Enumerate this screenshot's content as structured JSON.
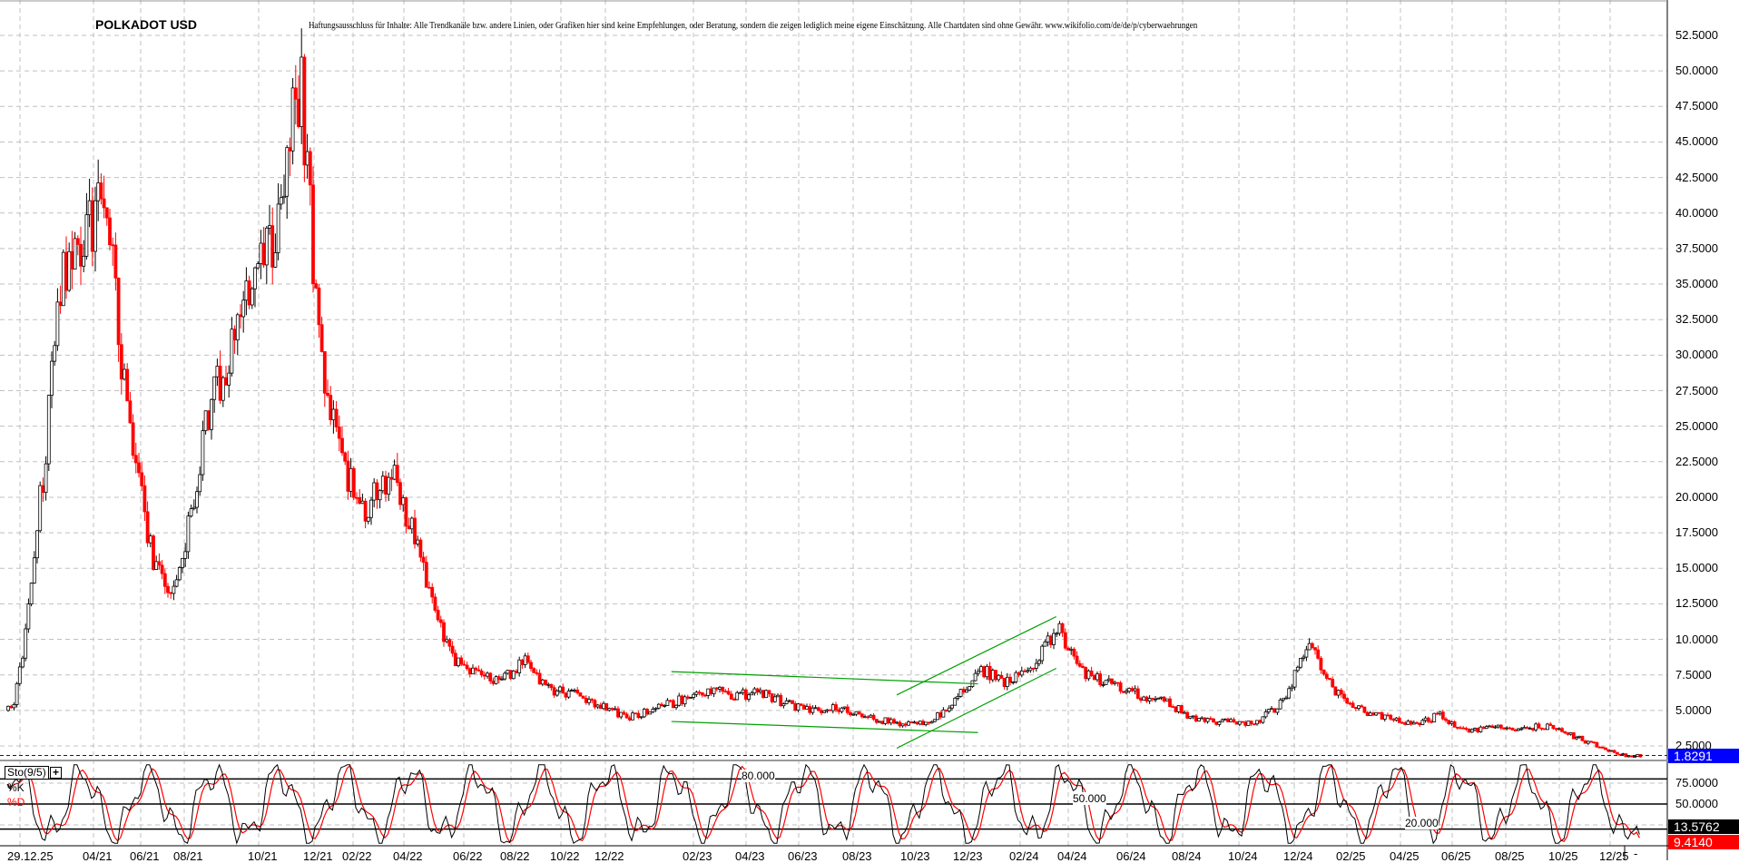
{
  "chart_data": {
    "type": "candlestick",
    "title": "POLKADOT USD",
    "disclaimer": "Haftungsausschluss für Inhalte: Alle Trendkanäle bzw. andere Linien, oder Grafiken hier sind keine Empfehlungen, oder Beratung, sondern die zeigen lediglich meine eigene Einschätzung. Alle Chartdaten sind ohne Gewähr.  www.wikifolio.com/de/de/p/cyberwaehrungen",
    "y_ticks": [
      "52.5000",
      "50.0000",
      "47.5000",
      "45.0000",
      "42.5000",
      "40.0000",
      "37.5000",
      "35.0000",
      "32.5000",
      "30.0000",
      "27.5000",
      "25.0000",
      "22.5000",
      "20.0000",
      "17.5000",
      "15.0000",
      "12.5000",
      "10.0000",
      "7.5000",
      "5.0000",
      "2.5000"
    ],
    "ylim": [
      1.5,
      55
    ],
    "x_ticks": [
      "29.12.25",
      "04/21",
      "06/21",
      "08/21",
      "10/21",
      "12/21",
      "02/22",
      "04/22",
      "06/22",
      "08/22",
      "10/22",
      "12/22",
      "02/23",
      "04/23",
      "06/23",
      "08/23",
      "10/23",
      "12/23",
      "02/24",
      "04/24",
      "06/24",
      "08/24",
      "10/24",
      "12/24",
      "02/25",
      "04/25",
      "06/25",
      "08/25",
      "10/25",
      "12/25"
    ],
    "x_axis_end": "-",
    "grid": true,
    "colors": {
      "up": "#000000",
      "down": "#ff0000",
      "trendline": "#00a000",
      "last_price": "#0000ff",
      "grid": "#c0c0c0"
    },
    "monthly_close": [
      [
        "2020-12",
        5
      ],
      [
        "2021-01",
        17
      ],
      [
        "2021-02",
        35
      ],
      [
        "2021-03",
        38
      ],
      [
        "2021-04",
        42
      ],
      [
        "2021-05",
        25
      ],
      [
        "2021-06",
        16
      ],
      [
        "2021-07",
        13
      ],
      [
        "2021-08",
        25
      ],
      [
        "2021-09",
        33
      ],
      [
        "2021-10",
        38
      ],
      [
        "2021-11",
        50
      ],
      [
        "2021-12",
        28
      ],
      [
        "2022-01",
        22
      ],
      [
        "2022-02",
        19
      ],
      [
        "2022-03",
        22
      ],
      [
        "2022-04",
        16
      ],
      [
        "2022-05",
        9
      ],
      [
        "2022-06",
        7.5
      ],
      [
        "2022-07",
        7
      ],
      [
        "2022-08",
        8.5
      ],
      [
        "2022-09",
        6.5
      ],
      [
        "2022-10",
        6.2
      ],
      [
        "2022-11",
        5.5
      ],
      [
        "2022-12",
        4.5
      ],
      [
        "2023-01",
        5.5
      ],
      [
        "2023-02",
        6.5
      ],
      [
        "2023-03",
        6
      ],
      [
        "2023-04",
        6.3
      ],
      [
        "2023-05",
        5.5
      ],
      [
        "2023-06",
        5
      ],
      [
        "2023-07",
        5.2
      ],
      [
        "2023-08",
        4.5
      ],
      [
        "2023-09",
        4.1
      ],
      [
        "2023-10",
        4
      ],
      [
        "2023-11",
        5.5
      ],
      [
        "2023-12",
        8
      ],
      [
        "2024-01",
        7
      ],
      [
        "2024-02",
        8
      ],
      [
        "2024-03",
        11
      ],
      [
        "2024-04",
        7.5
      ],
      [
        "2024-05",
        7
      ],
      [
        "2024-06",
        6
      ],
      [
        "2024-07",
        5.5
      ],
      [
        "2024-08",
        4.3
      ],
      [
        "2024-09",
        4.2
      ],
      [
        "2024-10",
        4.1
      ],
      [
        "2024-11",
        5.5
      ],
      [
        "2024-12",
        10
      ],
      [
        "2025-01",
        6.5
      ],
      [
        "2025-02",
        5
      ],
      [
        "2025-03",
        4.5
      ],
      [
        "2025-04",
        4
      ],
      [
        "2025-05",
        4.7
      ],
      [
        "2025-06",
        3.5
      ],
      [
        "2025-07",
        3.8
      ],
      [
        "2025-08",
        3.8
      ],
      [
        "2025-09",
        3.9
      ],
      [
        "2025-10",
        3.2
      ],
      [
        "2025-11",
        2.5
      ],
      [
        "2025-12",
        1.83
      ]
    ],
    "trendlines": [
      {
        "from": [
          "2023-01",
          7.73
        ],
        "to": [
          "2023-12",
          6.87
        ]
      },
      {
        "from": [
          "2023-01",
          4.22
        ],
        "to": [
          "2023-12",
          3.44
        ]
      },
      {
        "from": [
          "2023-09",
          6.09
        ],
        "to": [
          "2024-03",
          11.6
        ]
      },
      {
        "from": [
          "2023-09",
          2.34
        ],
        "to": [
          "2024-03",
          7.96
        ]
      }
    ],
    "last_price": "1.8291",
    "stochastic": {
      "label": "Sto(9/5)",
      "k_label": "%K",
      "d_label": "%D",
      "y_ticks": [
        "75.0000",
        "50.0000"
      ],
      "levels": [
        "80.000",
        "50.000",
        "20.000"
      ],
      "k_last": "13.5762",
      "d_last": "9.4140",
      "colors": {
        "k": "#000000",
        "d": "#ff0000"
      }
    }
  }
}
